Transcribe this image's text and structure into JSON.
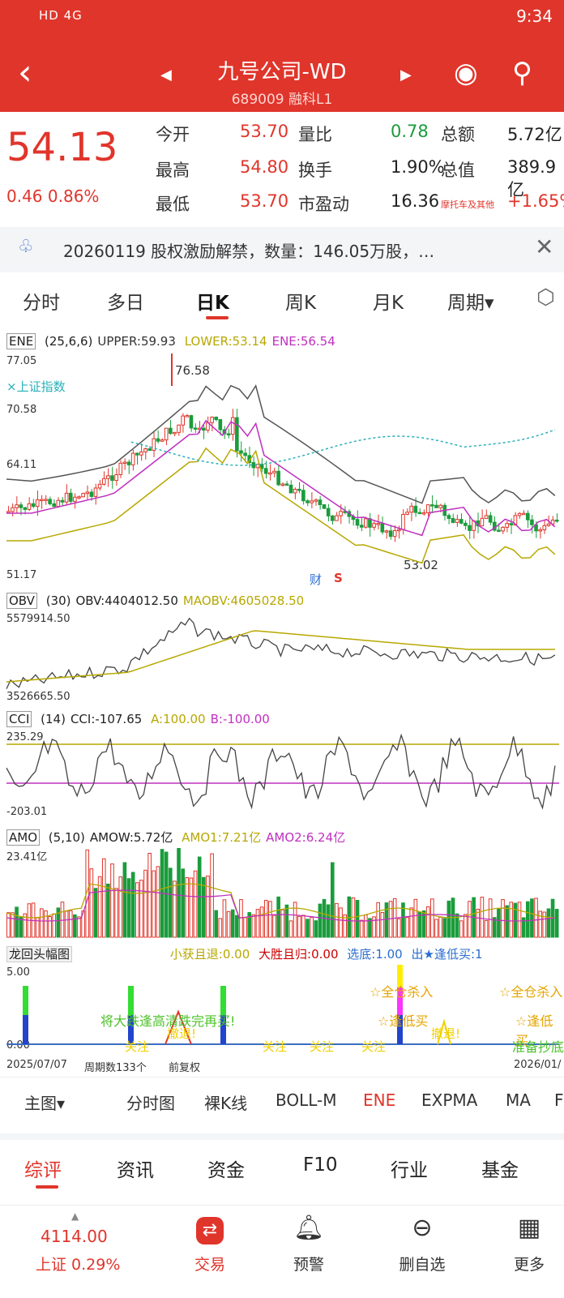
{
  "status_bar": {
    "left": "HD 4G",
    "time": "9:34"
  },
  "header": {
    "title": "九号公司-WD",
    "code": "689009",
    "tags": "融科L1"
  },
  "quote": {
    "price": "54.13",
    "change": "0.46",
    "change_pct": "0.86%",
    "rows": [
      {
        "l1": "今开",
        "v1": "53.70",
        "l2": "量比",
        "v2": "0.78",
        "l3": "总额",
        "v3": "5.72亿"
      },
      {
        "l1": "最高",
        "v1": "54.80",
        "l2": "换手",
        "v2": "1.90%",
        "l3": "总值",
        "v3": "389.9亿"
      },
      {
        "l1": "最低",
        "v1": "53.70",
        "l2": "市盈动",
        "v2": "16.36",
        "l3": "摩托车及其他",
        "v3": "+1.65%"
      }
    ]
  },
  "notice": {
    "text": "20260119 股权激励解禁，数量：146.05万股，…"
  },
  "ktabs": [
    "分时",
    "多日",
    "日K",
    "周K",
    "月K",
    "周期▾"
  ],
  "ene": {
    "name": "ENE",
    "params": "(25,6,6)",
    "upper": "UPPER:59.93",
    "lower": "LOWER:53.14",
    "ene": "ENE:56.54",
    "y1": "77.05",
    "y2": "70.58",
    "y3": "64.11",
    "y4": "51.17",
    "high": "76.58",
    "low": "53.02",
    "overlay": "×上证指数",
    "cai": "财",
    "s": "S"
  },
  "obv": {
    "name": "OBV",
    "params": "(30)",
    "obv": "OBV:4404012.50",
    "maobv": "MAOBV:4605028.50",
    "ytop": "5579914.50",
    "ybot": "3526665.50"
  },
  "cci": {
    "name": "CCI",
    "params": "(14)",
    "cci": "CCI:-107.65",
    "a": "A:100.00",
    "b": "B:-100.00",
    "ytop": "235.29",
    "ybot": "-203.01"
  },
  "amo": {
    "name": "AMO",
    "params": "(5,10)",
    "amow": "AMOW:5.72亿",
    "amo1": "AMO1:7.21亿",
    "amo2": "AMO2:6.24亿",
    "ytop": "23.41亿"
  },
  "dragon": {
    "name": "龙回头幅图",
    "a": "小获且退:0.00",
    "b": "大胜且归:0.00",
    "c": "选底:1.00",
    "d": "出★逢低买:1",
    "ytop": "5.00",
    "ybot": "0.00",
    "s1": "将大跌逢高清跌完再买!",
    "s2": "☆全仓杀入",
    "s3": "☆逢低买",
    "s4": "☆全仓杀入",
    "s5": "☆逢低买",
    "s6": "准备抄底",
    "s7": "关注",
    "s8": "关注",
    "s9": "关注",
    "s10": "关注",
    "s11": "撤退!",
    "s12": "撤退!"
  },
  "footer_axis": {
    "start": "2025/07/07",
    "count": "周期数133个",
    "adj": "前复权",
    "end": "2026/01/"
  },
  "mainbar": [
    "主图▾",
    "分时图",
    "裸K线",
    "BOLL-M",
    "ENE",
    "EXPMA",
    "MA",
    "F"
  ],
  "sectabs": [
    "综评",
    "资讯",
    "资金",
    "F10",
    "行业",
    "基金"
  ],
  "navbar": [
    {
      "top": "4114.00",
      "label": "上证 0.29%"
    },
    {
      "label": "交易"
    },
    {
      "label": "预警"
    },
    {
      "label": "删自选"
    },
    {
      "label": "更多"
    }
  ]
}
